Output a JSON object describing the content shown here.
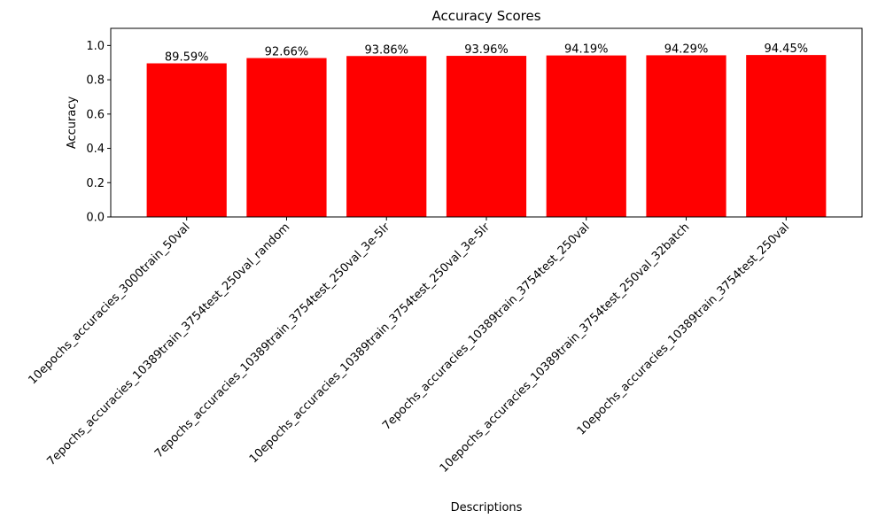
{
  "chart_data": {
    "type": "bar",
    "title": "Accuracy Scores",
    "xlabel": "Descriptions",
    "ylabel": "Accuracy",
    "categories": [
      "10epochs_accuracies_3000train_50val",
      "7epochs_accuracies_10389train_3754test_250val_random",
      "7epochs_accuracies_10389train_3754test_250val_3e-5lr",
      "10epochs_accuracies_10389train_3754test_250val_3e-5lr",
      "7epochs_accuracies_10389train_3754test_250val",
      "10epochs_accuracies_10389train_3754test_250val_32batch",
      "10epochs_accuracies_10389train_3754test_250val"
    ],
    "values": [
      0.8959,
      0.9266,
      0.9386,
      0.9396,
      0.9419,
      0.9429,
      0.9445
    ],
    "data_labels": [
      "89.59%",
      "92.66%",
      "93.86%",
      "93.96%",
      "94.19%",
      "94.29%",
      "94.45%"
    ],
    "ylim": [
      0,
      1.1
    ],
    "yticks": [
      0.0,
      0.2,
      0.4,
      0.6,
      0.8,
      1.0
    ],
    "ytick_labels": [
      "0.0",
      "0.2",
      "0.4",
      "0.6",
      "0.8",
      "1.0"
    ],
    "bar_color": "#ff0000",
    "grid": false
  }
}
